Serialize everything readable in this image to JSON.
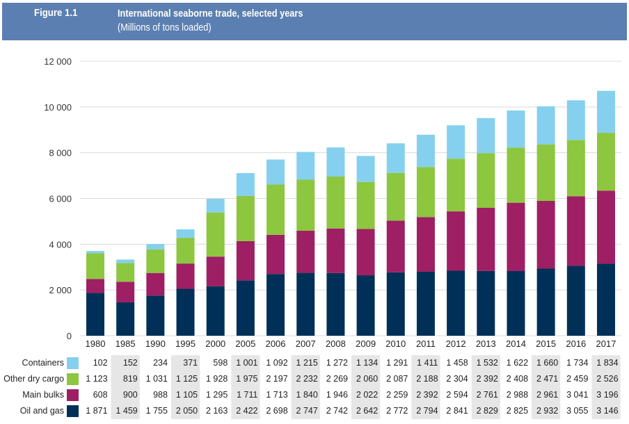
{
  "header": {
    "figure_label": "Figure 1.1",
    "title": "International seaborne trade, selected years",
    "subtitle": "(Millions of tons loaded)"
  },
  "colors": {
    "header_bg": "#5b7fb0",
    "containers": "#85d0ee",
    "other_dry_cargo": "#8dc63f",
    "main_bulks": "#9e1f63",
    "oil_and_gas": "#003057",
    "grid": "#d9d9d9",
    "table_shade": "#e6e6e6"
  },
  "chart_data": {
    "type": "bar",
    "stacked": true,
    "title": "International seaborne trade, selected years",
    "subtitle": "(Millions of tons loaded)",
    "xlabel": "",
    "ylabel": "",
    "ylim": [
      0,
      12000
    ],
    "yticks": [
      0,
      2000,
      4000,
      6000,
      8000,
      10000,
      12000
    ],
    "ytick_labels": [
      "0",
      "2 000",
      "4 000",
      "6 000",
      "8 000",
      "10 000",
      "12 000"
    ],
    "grid": true,
    "legend": "bottom-left data table",
    "categories": [
      "1980",
      "1985",
      "1990",
      "1995",
      "2000",
      "2005",
      "2006",
      "2007",
      "2008",
      "2009",
      "2010",
      "2011",
      "2012",
      "2013",
      "2014",
      "2015",
      "2016",
      "2017"
    ],
    "series": [
      {
        "name": "Oil and gas",
        "color": "#003057",
        "values": [
          1871,
          1459,
          1755,
          2050,
          2163,
          2422,
          2698,
          2747,
          2742,
          2642,
          2772,
          2794,
          2841,
          2829,
          2825,
          2932,
          3055,
          3146
        ],
        "labels": [
          "1 871",
          "1 459",
          "1 755",
          "2 050",
          "2 163",
          "2 422",
          "2 698",
          "2 747",
          "2 742",
          "2 642",
          "2 772",
          "2 794",
          "2 841",
          "2 829",
          "2 825",
          "2 932",
          "3 055",
          "3 146"
        ]
      },
      {
        "name": "Main bulks",
        "color": "#9e1f63",
        "values": [
          608,
          900,
          988,
          1105,
          1295,
          1711,
          1713,
          1840,
          1946,
          2022,
          2259,
          2392,
          2594,
          2761,
          2988,
          2961,
          3041,
          3196
        ],
        "labels": [
          "608",
          "900",
          "988",
          "1 105",
          "1 295",
          "1 711",
          "1 713",
          "1 840",
          "1 946",
          "2 022",
          "2 259",
          "2 392",
          "2 594",
          "2 761",
          "2 988",
          "2 961",
          "3 041",
          "3 196"
        ]
      },
      {
        "name": "Other dry cargo",
        "color": "#8dc63f",
        "values": [
          1123,
          819,
          1031,
          1125,
          1928,
          1975,
          2197,
          2232,
          2269,
          2060,
          2087,
          2188,
          2304,
          2392,
          2408,
          2471,
          2459,
          2526
        ],
        "labels": [
          "1 123",
          "819",
          "1 031",
          "1 125",
          "1 928",
          "1 975",
          "2 197",
          "2 232",
          "2 269",
          "2 060",
          "2 087",
          "2 188",
          "2 304",
          "2 392",
          "2 408",
          "2 471",
          "2 459",
          "2 526"
        ]
      },
      {
        "name": "Containers",
        "color": "#85d0ee",
        "values": [
          102,
          152,
          234,
          371,
          598,
          1001,
          1092,
          1215,
          1272,
          1134,
          1291,
          1411,
          1458,
          1532,
          1622,
          1660,
          1734,
          1834
        ],
        "labels": [
          "102",
          "152",
          "234",
          "371",
          "598",
          "1 001",
          "1 092",
          "1 215",
          "1 272",
          "1 134",
          "1 291",
          "1 411",
          "1 458",
          "1 532",
          "1 622",
          "1 660",
          "1 734",
          "1 834"
        ]
      }
    ],
    "table_row_order": [
      "Containers",
      "Other dry cargo",
      "Main bulks",
      "Oil and gas"
    ]
  }
}
